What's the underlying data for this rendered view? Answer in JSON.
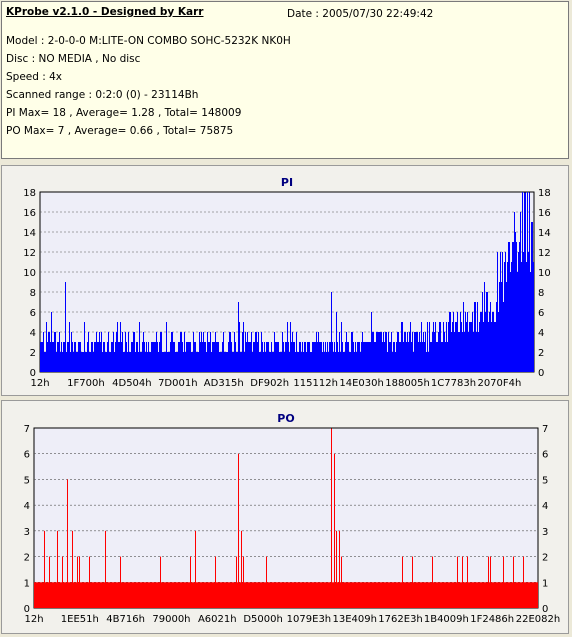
{
  "header": {
    "title": "KProbe v2.1.0 - Designed by Karr",
    "date": "Date : 2005/07/30 22:49:42",
    "lines": [
      "Model : 2-0-0-0 M:LITE-ON COMBO SOHC-5232K NK0H",
      "Disc : NO MEDIA , No disc",
      "Speed : 4x",
      "Scanned range : 0:2:0 (0) - 23114Bh",
      "PI Max= 18 , Average= 1.28 , Total= 148009",
      "PO Max= 7 , Average= 0.66 , Total= 75875"
    ]
  },
  "chart_data": [
    {
      "type": "bar",
      "title": "PI",
      "color": "#0000ff",
      "ylim": [
        0,
        18
      ],
      "yticks": [
        0,
        2,
        4,
        6,
        8,
        10,
        12,
        14,
        16,
        18
      ],
      "xticks": [
        "12h",
        "1F700h",
        "4D504h",
        "7D001h",
        "AD315h",
        "DF902h",
        "115112h",
        "14E030h",
        "188005h",
        "1C7783h",
        "2070F4h"
      ],
      "x_range": [
        "12h",
        "23114Bh"
      ],
      "baseline": 3,
      "series_profile": [
        [
          0,
          3
        ],
        [
          0.45,
          3
        ],
        [
          0.5,
          3
        ],
        [
          0.6,
          3
        ],
        [
          0.7,
          3.5
        ],
        [
          0.78,
          4
        ],
        [
          0.84,
          5
        ],
        [
          0.9,
          7
        ],
        [
          0.95,
          11
        ],
        [
          0.98,
          15
        ],
        [
          1.0,
          16
        ]
      ],
      "spikes": [
        {
          "pos": 0.05,
          "value": 9
        },
        {
          "pos": 0.09,
          "value": 5
        },
        {
          "pos": 0.4,
          "value": 7
        },
        {
          "pos": 0.41,
          "value": 5
        },
        {
          "pos": 0.5,
          "value": 5
        },
        {
          "pos": 0.59,
          "value": 8
        },
        {
          "pos": 0.6,
          "value": 6
        },
        {
          "pos": 0.61,
          "value": 5
        },
        {
          "pos": 0.96,
          "value": 16
        },
        {
          "pos": 0.975,
          "value": 18
        },
        {
          "pos": 0.985,
          "value": 18
        },
        {
          "pos": 0.99,
          "value": 17
        }
      ]
    },
    {
      "type": "bar",
      "title": "PO",
      "color": "#ff0000",
      "ylim": [
        0,
        7
      ],
      "yticks": [
        0,
        1,
        2,
        3,
        4,
        5,
        6,
        7
      ],
      "xticks": [
        "12h",
        "1EE51h",
        "4B716h",
        "79000h",
        "A6021h",
        "D5000h",
        "1079E3h",
        "13E409h",
        "1762E3h",
        "1B4009h",
        "1F2486h",
        "22E082h"
      ],
      "x_range": [
        "12h",
        "23114Bh"
      ],
      "baseline": 1,
      "spikes": [
        {
          "pos": 0.02,
          "value": 3
        },
        {
          "pos": 0.03,
          "value": 2
        },
        {
          "pos": 0.045,
          "value": 3
        },
        {
          "pos": 0.055,
          "value": 2
        },
        {
          "pos": 0.065,
          "value": 5
        },
        {
          "pos": 0.075,
          "value": 3
        },
        {
          "pos": 0.085,
          "value": 2
        },
        {
          "pos": 0.09,
          "value": 2
        },
        {
          "pos": 0.11,
          "value": 2
        },
        {
          "pos": 0.14,
          "value": 3
        },
        {
          "pos": 0.17,
          "value": 2
        },
        {
          "pos": 0.25,
          "value": 2
        },
        {
          "pos": 0.31,
          "value": 2
        },
        {
          "pos": 0.32,
          "value": 3
        },
        {
          "pos": 0.36,
          "value": 2
        },
        {
          "pos": 0.4,
          "value": 2
        },
        {
          "pos": 0.405,
          "value": 6
        },
        {
          "pos": 0.41,
          "value": 3
        },
        {
          "pos": 0.415,
          "value": 2
        },
        {
          "pos": 0.46,
          "value": 2
        },
        {
          "pos": 0.59,
          "value": 7
        },
        {
          "pos": 0.595,
          "value": 6
        },
        {
          "pos": 0.6,
          "value": 3
        },
        {
          "pos": 0.605,
          "value": 3
        },
        {
          "pos": 0.61,
          "value": 2
        },
        {
          "pos": 0.73,
          "value": 2
        },
        {
          "pos": 0.75,
          "value": 2
        },
        {
          "pos": 0.79,
          "value": 2
        },
        {
          "pos": 0.84,
          "value": 2
        },
        {
          "pos": 0.85,
          "value": 2
        },
        {
          "pos": 0.86,
          "value": 2
        },
        {
          "pos": 0.9,
          "value": 2
        },
        {
          "pos": 0.905,
          "value": 2
        },
        {
          "pos": 0.93,
          "value": 2
        },
        {
          "pos": 0.95,
          "value": 2
        },
        {
          "pos": 0.97,
          "value": 2
        }
      ]
    }
  ]
}
